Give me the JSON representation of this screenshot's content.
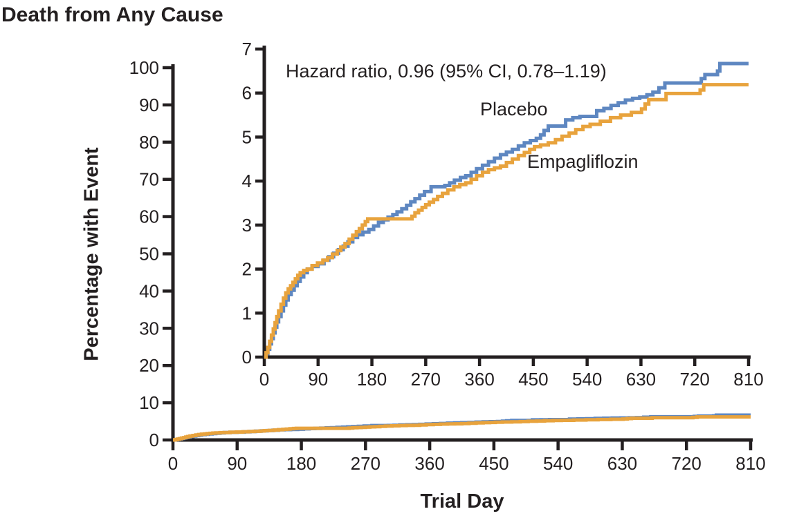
{
  "title": "Death from Any Cause",
  "annotation": "Hazard ratio, 0.96 (95% CI, 0.78–1.19)",
  "axis": {
    "x_label": "Trial Day",
    "y_label": "Percentage with Event"
  },
  "colors": {
    "placebo": "#5E87C1",
    "empagliflozin": "#E8A33D",
    "axis": "#231F20",
    "background": "#FFFFFF"
  },
  "chart_data": {
    "type": "line",
    "subtype": "kaplan-meier-step-with-inset",
    "title": "Death from Any Cause",
    "xlabel": "Trial Day",
    "ylabel": "Percentage with Event",
    "annotation": "Hazard ratio, 0.96 (95% CI, 0.78–1.19)",
    "grid": false,
    "main_axis": {
      "xlim": [
        0,
        810
      ],
      "ylim": [
        0,
        100
      ],
      "x_ticks": [
        0,
        90,
        180,
        270,
        360,
        450,
        540,
        630,
        720,
        810
      ],
      "y_ticks": [
        0,
        10,
        20,
        30,
        40,
        50,
        60,
        70,
        80,
        90,
        100
      ]
    },
    "inset_axis": {
      "xlim": [
        0,
        810
      ],
      "ylim": [
        0,
        7
      ],
      "x_ticks": [
        0,
        90,
        180,
        270,
        360,
        450,
        540,
        630,
        720,
        810
      ],
      "y_ticks": [
        0,
        1,
        2,
        3,
        4,
        5,
        6,
        7
      ]
    },
    "legend": [
      {
        "name": "Placebo",
        "color": "#5E87C1"
      },
      {
        "name": "Empagliflozin",
        "color": "#E8A33D"
      }
    ],
    "series": [
      {
        "name": "Placebo",
        "color": "#5E87C1",
        "points": [
          [
            0,
            0
          ],
          [
            3,
            0.08
          ],
          [
            6,
            0.18
          ],
          [
            9,
            0.3
          ],
          [
            12,
            0.42
          ],
          [
            15,
            0.55
          ],
          [
            18,
            0.68
          ],
          [
            21,
            0.8
          ],
          [
            24,
            0.92
          ],
          [
            28,
            1.05
          ],
          [
            32,
            1.18
          ],
          [
            36,
            1.3
          ],
          [
            40,
            1.42
          ],
          [
            45,
            1.52
          ],
          [
            50,
            1.62
          ],
          [
            55,
            1.72
          ],
          [
            60,
            1.82
          ],
          [
            66,
            1.92
          ],
          [
            72,
            2.0
          ],
          [
            80,
            2.06
          ],
          [
            90,
            2.12
          ],
          [
            100,
            2.2
          ],
          [
            108,
            2.28
          ],
          [
            116,
            2.36
          ],
          [
            124,
            2.44
          ],
          [
            132,
            2.52
          ],
          [
            140,
            2.62
          ],
          [
            148,
            2.72
          ],
          [
            156,
            2.78
          ],
          [
            165,
            2.84
          ],
          [
            175,
            2.9
          ],
          [
            183,
            2.98
          ],
          [
            191,
            3.06
          ],
          [
            199,
            3.12
          ],
          [
            207,
            3.18
          ],
          [
            215,
            3.24
          ],
          [
            222,
            3.3
          ],
          [
            230,
            3.37
          ],
          [
            238,
            3.45
          ],
          [
            245,
            3.53
          ],
          [
            252,
            3.6
          ],
          [
            260,
            3.68
          ],
          [
            268,
            3.76
          ],
          [
            279,
            3.87
          ],
          [
            302,
            3.9
          ],
          [
            310,
            3.96
          ],
          [
            318,
            4.02
          ],
          [
            328,
            4.08
          ],
          [
            337,
            4.12
          ],
          [
            346,
            4.2
          ],
          [
            355,
            4.28
          ],
          [
            365,
            4.36
          ],
          [
            375,
            4.44
          ],
          [
            385,
            4.52
          ],
          [
            395,
            4.6
          ],
          [
            405,
            4.66
          ],
          [
            415,
            4.72
          ],
          [
            425,
            4.8
          ],
          [
            435,
            4.87
          ],
          [
            445,
            4.92
          ],
          [
            455,
            4.97
          ],
          [
            462,
            5.05
          ],
          [
            468,
            5.15
          ],
          [
            475,
            5.25
          ],
          [
            504,
            5.39
          ],
          [
            516,
            5.44
          ],
          [
            528,
            5.47
          ],
          [
            556,
            5.6
          ],
          [
            568,
            5.65
          ],
          [
            580,
            5.72
          ],
          [
            592,
            5.78
          ],
          [
            604,
            5.84
          ],
          [
            616,
            5.88
          ],
          [
            628,
            5.91
          ],
          [
            640,
            5.96
          ],
          [
            650,
            6.02
          ],
          [
            660,
            6.12
          ],
          [
            670,
            6.23
          ],
          [
            731,
            6.33
          ],
          [
            737,
            6.42
          ],
          [
            758,
            6.5
          ],
          [
            762,
            6.67
          ],
          [
            810,
            6.67
          ]
        ]
      },
      {
        "name": "Empagliflozin",
        "color": "#E8A33D",
        "points": [
          [
            0,
            0
          ],
          [
            3,
            0.1
          ],
          [
            6,
            0.22
          ],
          [
            9,
            0.36
          ],
          [
            12,
            0.5
          ],
          [
            15,
            0.64
          ],
          [
            18,
            0.78
          ],
          [
            21,
            0.92
          ],
          [
            24,
            1.05
          ],
          [
            28,
            1.2
          ],
          [
            32,
            1.34
          ],
          [
            36,
            1.46
          ],
          [
            40,
            1.55
          ],
          [
            44,
            1.62
          ],
          [
            48,
            1.7
          ],
          [
            52,
            1.78
          ],
          [
            56,
            1.86
          ],
          [
            60,
            1.92
          ],
          [
            66,
            1.97
          ],
          [
            72,
            2.0
          ],
          [
            80,
            2.08
          ],
          [
            89,
            2.14
          ],
          [
            98,
            2.2
          ],
          [
            106,
            2.26
          ],
          [
            114,
            2.34
          ],
          [
            122,
            2.42
          ],
          [
            128,
            2.5
          ],
          [
            135,
            2.58
          ],
          [
            142,
            2.68
          ],
          [
            148,
            2.77
          ],
          [
            154,
            2.85
          ],
          [
            159,
            2.92
          ],
          [
            164,
            3.0
          ],
          [
            169,
            3.08
          ],
          [
            173,
            3.14
          ],
          [
            247,
            3.2
          ],
          [
            252,
            3.28
          ],
          [
            258,
            3.34
          ],
          [
            264,
            3.4
          ],
          [
            270,
            3.46
          ],
          [
            276,
            3.52
          ],
          [
            283,
            3.58
          ],
          [
            290,
            3.65
          ],
          [
            298,
            3.72
          ],
          [
            307,
            3.8
          ],
          [
            317,
            3.87
          ],
          [
            327,
            3.92
          ],
          [
            337,
            3.96
          ],
          [
            346,
            4.04
          ],
          [
            355,
            4.12
          ],
          [
            365,
            4.2
          ],
          [
            375,
            4.26
          ],
          [
            385,
            4.3
          ],
          [
            395,
            4.34
          ],
          [
            405,
            4.42
          ],
          [
            415,
            4.5
          ],
          [
            425,
            4.58
          ],
          [
            435,
            4.65
          ],
          [
            444,
            4.72
          ],
          [
            452,
            4.78
          ],
          [
            462,
            4.82
          ],
          [
            475,
            4.87
          ],
          [
            487,
            4.94
          ],
          [
            498,
            5.02
          ],
          [
            510,
            5.09
          ],
          [
            521,
            5.17
          ],
          [
            533,
            5.24
          ],
          [
            545,
            5.29
          ],
          [
            562,
            5.36
          ],
          [
            579,
            5.44
          ],
          [
            596,
            5.5
          ],
          [
            614,
            5.56
          ],
          [
            631,
            5.64
          ],
          [
            637,
            5.75
          ],
          [
            643,
            5.85
          ],
          [
            672,
            5.99
          ],
          [
            729,
            6.07
          ],
          [
            735,
            6.19
          ],
          [
            810,
            6.19
          ]
        ]
      }
    ]
  }
}
